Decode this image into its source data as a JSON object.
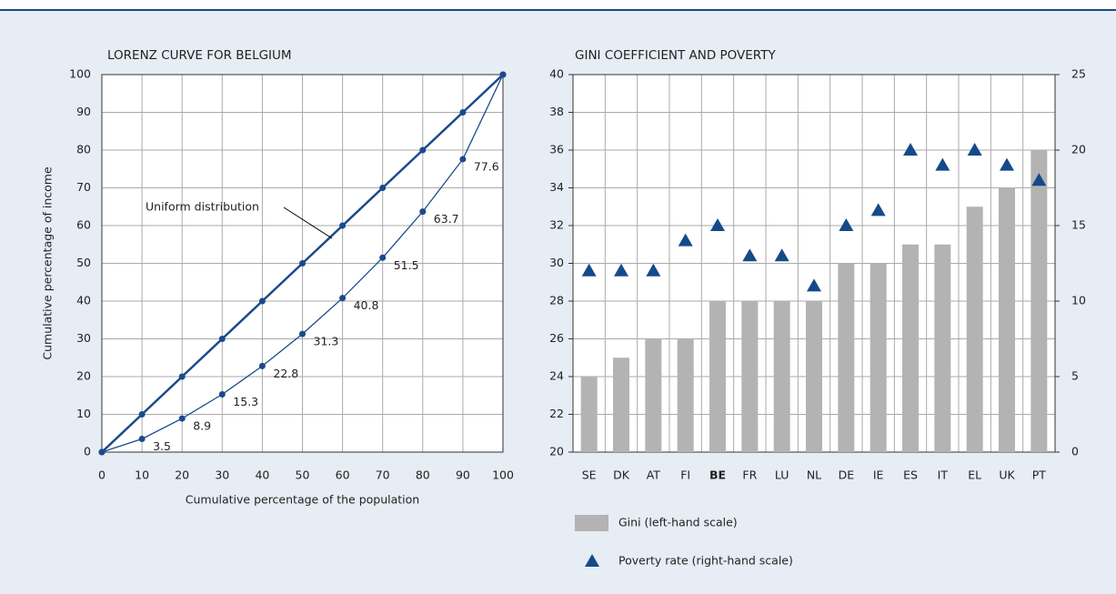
{
  "chart_data": [
    {
      "type": "line",
      "title": "LORENZ CURVE FOR BELGIUM",
      "x_label": "Cumulative percentage of the population",
      "y_label": "Cumulative percentage of income",
      "x": [
        0,
        10,
        20,
        30,
        40,
        50,
        60,
        70,
        80,
        90,
        100
      ],
      "series": [
        {
          "name": "Uniform distribution",
          "color": "#1a4a8a",
          "values": [
            0,
            10,
            20,
            30,
            40,
            50,
            60,
            70,
            80,
            90,
            100
          ]
        },
        {
          "color": "#1a4a8a",
          "values": [
            0,
            3.5,
            8.9,
            15.3,
            22.8,
            31.3,
            40.8,
            51.5,
            63.7,
            77.6,
            100
          ],
          "value_labels": [
            null,
            "3.5",
            "8.9",
            "15.3",
            "22.8",
            "31.3",
            "40.8",
            "51.5",
            "63.7",
            "77.6",
            null
          ]
        }
      ],
      "xlim": [
        0,
        100
      ],
      "xticks": [
        0,
        10,
        20,
        30,
        40,
        50,
        60,
        70,
        80,
        90,
        100
      ],
      "ylim": [
        0,
        100
      ],
      "yticks": [
        0,
        10,
        20,
        30,
        40,
        50,
        60,
        70,
        80,
        90,
        100
      ],
      "grid": true
    },
    {
      "type": "bar",
      "title": "GINI COEFFICIENT AND POVERTY",
      "categories": [
        "SE",
        "DK",
        "AT",
        "FI",
        "BE",
        "FR",
        "LU",
        "NL",
        "DE",
        "IE",
        "ES",
        "IT",
        "EL",
        "UK",
        "PT"
      ],
      "bold_categories": [
        4
      ],
      "series": [
        {
          "name": "Gini (left-hand scale)",
          "type": "bar",
          "color": "#b3b3b3",
          "values": [
            24,
            25,
            26,
            26,
            28,
            28,
            28,
            28,
            30,
            30,
            31,
            31,
            33,
            34,
            36
          ]
        },
        {
          "name": "Poverty rate (right-hand scale)",
          "type": "scatter",
          "axis": "y2",
          "color": "#154a8a",
          "values": [
            12,
            12,
            12,
            14,
            15,
            13,
            13,
            11,
            15,
            16,
            20,
            19,
            20,
            19,
            18
          ]
        }
      ],
      "ylim": [
        20,
        40
      ],
      "yticks": [
        20,
        22,
        24,
        26,
        28,
        30,
        32,
        34,
        36,
        38,
        40
      ],
      "y2lim": [
        0,
        25
      ],
      "y2ticks": [
        0,
        5,
        10,
        15,
        20,
        25
      ],
      "grid": true
    }
  ]
}
